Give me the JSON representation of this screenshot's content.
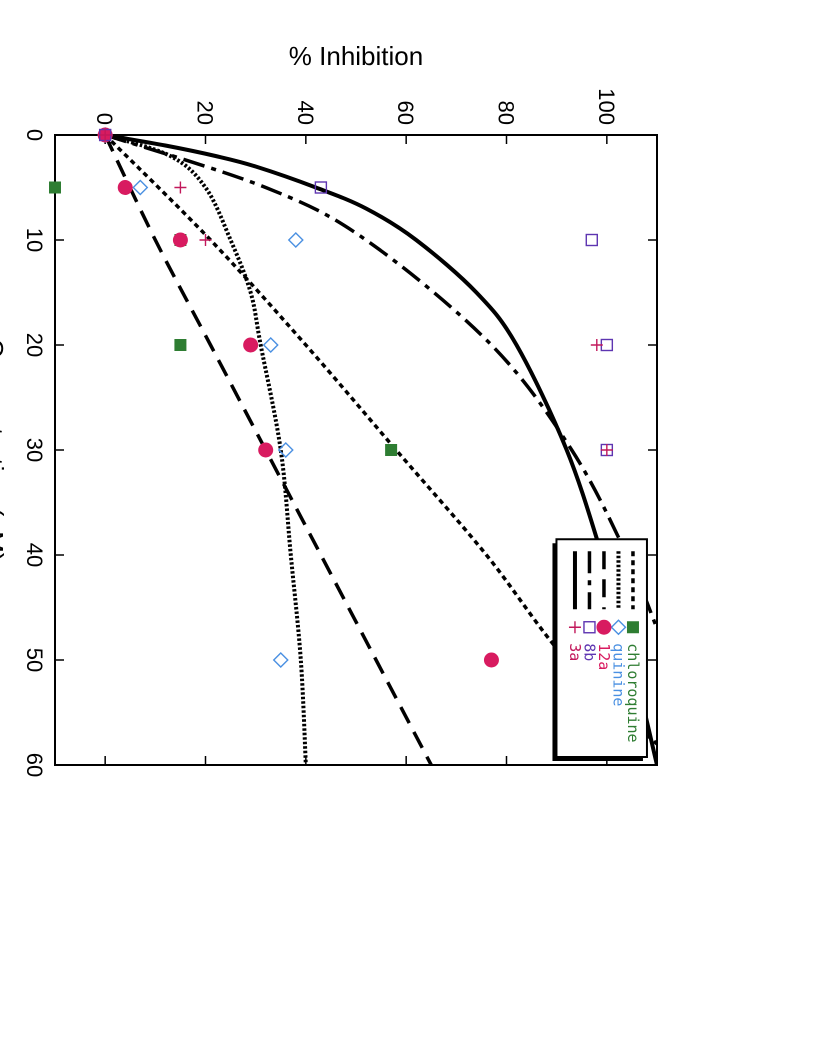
{
  "chart_data": {
    "type": "scatter",
    "xlabel": "Concentration  (μM)",
    "ylabel": "% Inhibition",
    "xlim": [
      0,
      60
    ],
    "ylim": [
      -10,
      110
    ],
    "x_ticks": [
      "0",
      "10",
      "20",
      "30",
      "40",
      "50",
      "60"
    ],
    "y_ticks": [
      "0",
      "20",
      "40",
      "60",
      "80",
      "100"
    ],
    "grid": false,
    "legend_position": "top-right",
    "series": [
      {
        "name": "chloroquine",
        "marker": "filled-square",
        "color": "#2e7d32",
        "points": [
          [
            0,
            0
          ],
          [
            5,
            -10
          ],
          [
            10,
            15
          ],
          [
            20,
            15
          ],
          [
            30,
            57
          ],
          [
            50,
            100
          ]
        ],
        "fit": {
          "style": "short-dash",
          "x": [
            0,
            10,
            20,
            30,
            40,
            50,
            58
          ],
          "y": [
            0,
            21,
            40,
            58,
            76,
            92,
            110
          ]
        }
      },
      {
        "name": "quinine",
        "marker": "open-diamond",
        "color": "#4a90e2",
        "points": [
          [
            0,
            0
          ],
          [
            5,
            7
          ],
          [
            10,
            38
          ],
          [
            20,
            33
          ],
          [
            30,
            36
          ],
          [
            50,
            35
          ]
        ],
        "fit": {
          "style": "dotted",
          "x": [
            0,
            2,
            5,
            10,
            15,
            20,
            30,
            40,
            50,
            60
          ],
          "y": [
            0,
            13,
            20,
            25,
            29,
            31,
            35,
            37,
            39,
            40
          ]
        }
      },
      {
        "name": "12a",
        "marker": "filled-circle",
        "color": "#d81b60",
        "points": [
          [
            0,
            0
          ],
          [
            5,
            4
          ],
          [
            10,
            15
          ],
          [
            20,
            29
          ],
          [
            30,
            32
          ],
          [
            50,
            77
          ]
        ],
        "fit": {
          "style": "long-dash",
          "x": [
            0,
            10,
            20,
            30,
            40,
            50,
            60
          ],
          "y": [
            0,
            10,
            21,
            32,
            43,
            54,
            65
          ]
        }
      },
      {
        "name": "8b",
        "marker": "open-square",
        "color": "#5e35b1",
        "points": [
          [
            0,
            0
          ],
          [
            5,
            43
          ],
          [
            10,
            97
          ],
          [
            20,
            100
          ],
          [
            30,
            100
          ],
          [
            50,
            100
          ]
        ],
        "fit": {
          "style": "dash-dot",
          "x": [
            0,
            5,
            10,
            20,
            30,
            40,
            47
          ],
          "y": [
            0,
            32,
            52,
            77,
            93,
            104,
            110
          ]
        }
      },
      {
        "name": "3a",
        "marker": "plus",
        "color": "#c2185b",
        "points": [
          [
            0,
            0
          ],
          [
            5,
            15
          ],
          [
            10,
            20
          ],
          [
            20,
            98
          ],
          [
            30,
            100
          ]
        ],
        "fit": {
          "style": "solid",
          "x": [
            0,
            1,
            2,
            3,
            5,
            7,
            10,
            15,
            20,
            30,
            40,
            50,
            60
          ],
          "y": [
            0,
            12,
            22,
            30,
            42,
            52,
            62,
            74,
            82,
            92,
            99,
            105,
            110
          ]
        }
      }
    ]
  }
}
